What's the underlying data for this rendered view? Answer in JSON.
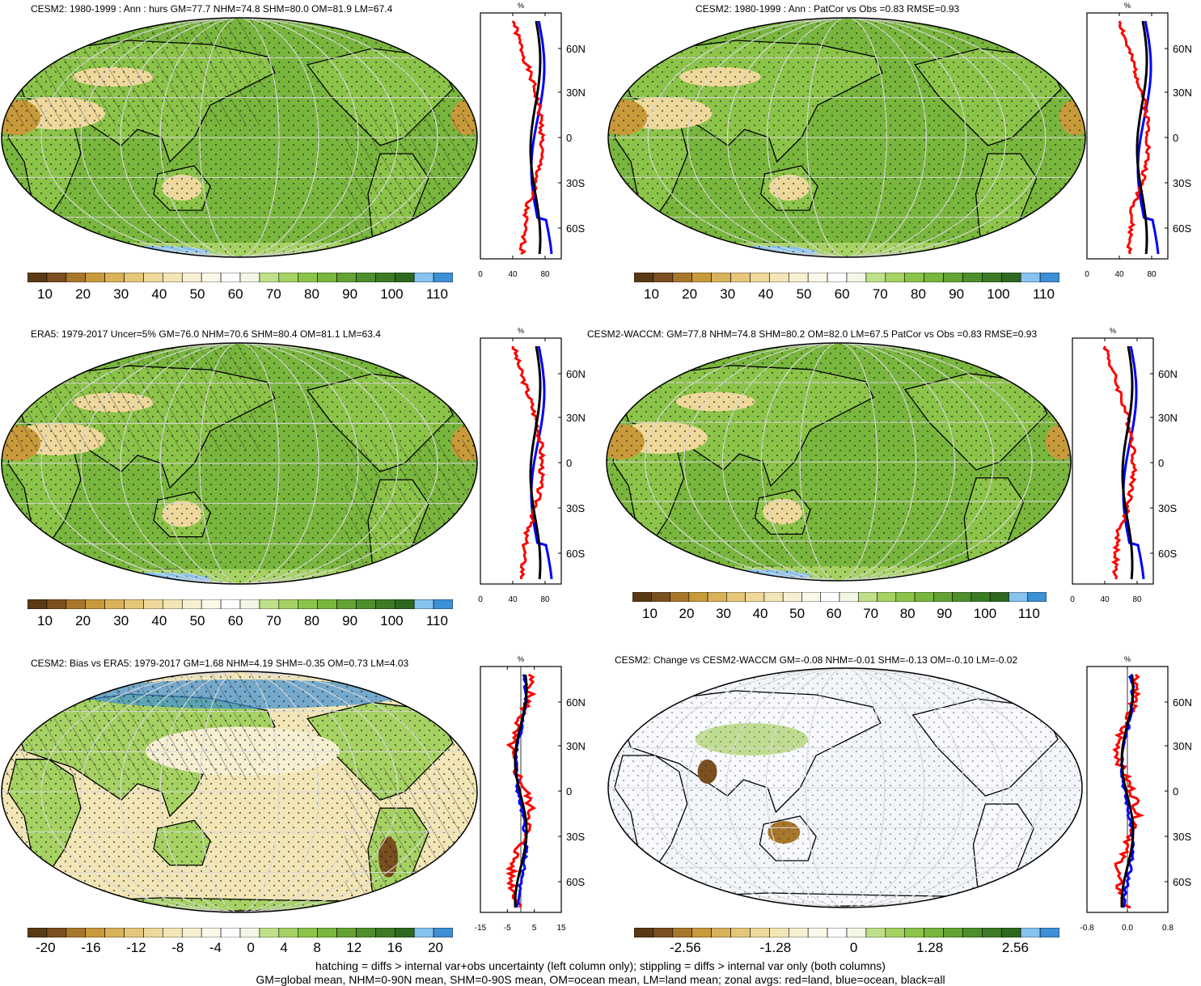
{
  "panels": [
    {
      "id": "p1",
      "title": "CESM2: 1980-1999 : Ann : hurs GM=77.7 NHM=74.8 SHM=80.0 OM=81.9 LM=67.4",
      "kind": "abs",
      "hatch": true
    },
    {
      "id": "p2",
      "title": "CESM2: 1980-1999 : Ann : PatCor vs Obs =0.83 RMSE=0.93",
      "kind": "abs",
      "hatch": false
    },
    {
      "id": "p3",
      "title": "ERA5: 1979-2017 Uncer=5% GM=76.0 NHM=70.6 SHM=80.4 OM=81.1 LM=63.4",
      "kind": "abs",
      "hatch": true
    },
    {
      "id": "p4",
      "title": "CESM2-WACCM: GM=77.8 NHM=74.8 SHM=80.2 OM=82.0 LM=67.5 PatCor vs Obs =0.83 RMSE=0.93",
      "kind": "abs",
      "hatch": false
    },
    {
      "id": "p5",
      "title": "CESM2: Bias vs ERA5: 1979-2017 GM=1.68 NHM=4.19 SHM=-0.35 OM=0.73 LM=4.03",
      "kind": "bias",
      "hatch": true
    },
    {
      "id": "p6",
      "title": "CESM2: Change vs CESM2-WACCM GM=-0.08 NHM=-0.01 SHM=-0.13 OM=-0.10 LM=-0.02",
      "kind": "change",
      "hatch": false
    }
  ],
  "zonal_axis": {
    "unit": "%",
    "lat_labels": [
      "60N",
      "30N",
      "0",
      "30S",
      "60S"
    ]
  },
  "zonal_x_ticks": {
    "abs1": [
      "0",
      "40",
      "80"
    ],
    "abs2": [
      "0",
      "40",
      "80"
    ],
    "bias": [
      "-15",
      "-5",
      "5",
      "15"
    ],
    "change": [
      "-0.8",
      "0.0",
      "0.8"
    ]
  },
  "colorbars": {
    "abs": {
      "labels": [
        "10",
        "20",
        "30",
        "40",
        "50",
        "60",
        "70",
        "80",
        "90",
        "100",
        "110"
      ],
      "colors": [
        "#5a3a15",
        "#7a5020",
        "#a8772b",
        "#c89a3a",
        "#dab25a",
        "#e6c77a",
        "#eed89a",
        "#f3e6b6",
        "#f6efd2",
        "#fbf8ea",
        "#ffffff",
        "#f2f7e6",
        "#bfe08a",
        "#a6d263",
        "#8cc449",
        "#79b63d",
        "#63a333",
        "#4e8f2c",
        "#3c7b26",
        "#2e6820",
        "#87c3ef",
        "#3d8fd6"
      ]
    },
    "bias": {
      "labels": [
        "-20",
        "-16",
        "-12",
        "-8",
        "-4",
        "0",
        "4",
        "8",
        "12",
        "16",
        "20"
      ],
      "colors": [
        "#5a3a15",
        "#7a5020",
        "#a8772b",
        "#c89a3a",
        "#dab25a",
        "#e6c77a",
        "#eed89a",
        "#f3e6b6",
        "#f6efd2",
        "#fbf8ea",
        "#ffffff",
        "#f2f7e6",
        "#bfe08a",
        "#a6d263",
        "#8cc449",
        "#79b63d",
        "#63a333",
        "#4e8f2c",
        "#3c7b26",
        "#2e6820",
        "#87c3ef",
        "#3d8fd6"
      ]
    },
    "change": {
      "labels": [
        "-2.56",
        "-1.28",
        "0",
        "1.28",
        "2.56"
      ],
      "colors": [
        "#5a3a15",
        "#7a5020",
        "#a8772b",
        "#c89a3a",
        "#dab25a",
        "#e6c77a",
        "#eed89a",
        "#f3e6b6",
        "#f6efd2",
        "#fbf8ea",
        "#ffffff",
        "#f2f7e6",
        "#bfe08a",
        "#a6d263",
        "#8cc449",
        "#79b63d",
        "#63a333",
        "#4e8f2c",
        "#3c7b26",
        "#2e6820",
        "#87c3ef",
        "#3d8fd6"
      ]
    }
  },
  "footer": {
    "line1": "hatching = diffs > internal var+obs uncertainty (left column only); stippling = diffs > internal var only (both columns)",
    "line2": "GM=global mean, NHM=0-90N mean, SHM=0-90S mean, OM=ocean mean, LM=land mean; zonal avgs: red=land, blue=ocean, black=all"
  },
  "map_colors": {
    "ocean_abs": "#79b63d",
    "land_dry": "#eed89a",
    "ice": "#87c3ef",
    "bias_ocean": "#f3e6b6",
    "change_bg": "#f2f5fa"
  },
  "line_colors": {
    "land": "#ff0000",
    "ocean": "#0000ff",
    "all": "#000000"
  }
}
